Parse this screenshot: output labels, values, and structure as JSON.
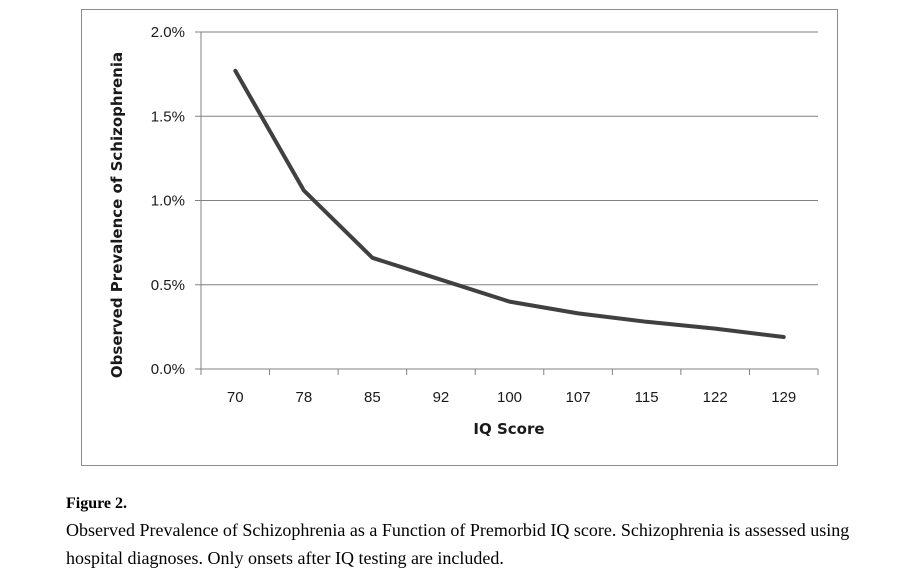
{
  "chart_data": {
    "type": "line",
    "categories": [
      "70",
      "78",
      "85",
      "92",
      "100",
      "107",
      "115",
      "122",
      "129"
    ],
    "series": [
      {
        "name": "Observed Prevalence of Schizophrenia",
        "values": [
          0.0177,
          0.0106,
          0.0066,
          0.0053,
          0.004,
          0.0033,
          0.0028,
          0.0024,
          0.0019
        ]
      }
    ],
    "ylim": [
      0,
      0.02
    ],
    "yticks": [
      0,
      0.005,
      0.01,
      0.015,
      0.02
    ],
    "ytick_labels": [
      "0.0%",
      "0.5%",
      "1.0%",
      "1.5%",
      "2.0%"
    ],
    "xlabel": "IQ Score",
    "ylabel": "Observed Prevalence of Schizophrenia",
    "grid": true,
    "line_color": "#404040",
    "grid_color": "#808080"
  },
  "caption": {
    "label": "Figure 2.",
    "text": "Observed Prevalence of Schizophrenia as a Function of Premorbid IQ score. Schizophrenia is assessed using hospital diagnoses. Only onsets after IQ testing are included."
  }
}
